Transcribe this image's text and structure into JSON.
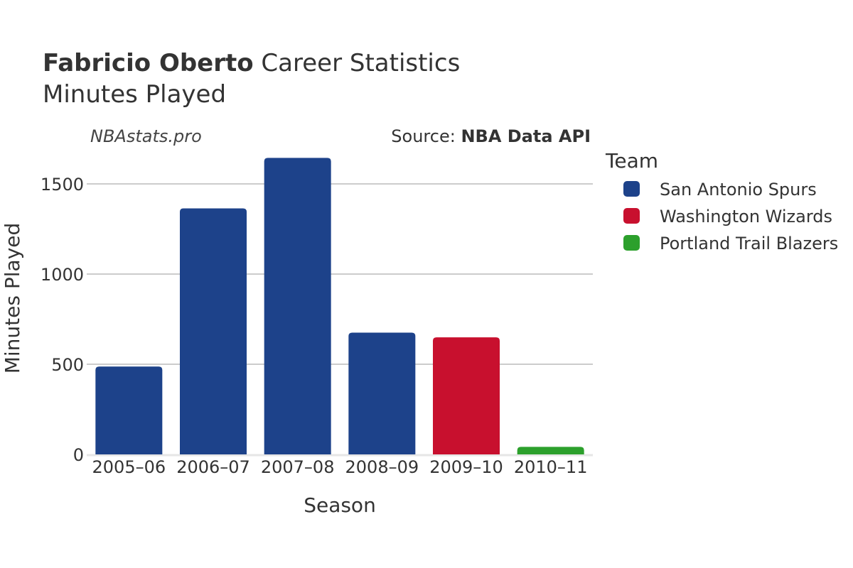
{
  "header": {
    "player_name": "Fabricio Oberto",
    "title_rest": " Career Statistics",
    "subtitle": "Minutes Played"
  },
  "watermark": "NBAstats.pro",
  "source": {
    "prefix": "Source: ",
    "name": "NBA Data API"
  },
  "legend": {
    "title": "Team",
    "items": [
      {
        "label": "San Antonio Spurs",
        "color": "#1D428A"
      },
      {
        "label": "Washington Wizards",
        "color": "#C8102E"
      },
      {
        "label": "Portland Trail Blazers",
        "color": "#2CA02C"
      }
    ]
  },
  "chart_data": {
    "type": "bar",
    "categories": [
      "2005–06",
      "2006–07",
      "2007–08",
      "2008–09",
      "2009–10",
      "2010–11"
    ],
    "values": [
      487,
      1364,
      1644,
      675,
      649,
      42
    ],
    "teams": [
      "San Antonio Spurs",
      "San Antonio Spurs",
      "San Antonio Spurs",
      "San Antonio Spurs",
      "Washington Wizards",
      "Portland Trail Blazers"
    ],
    "xlabel": "Season",
    "ylabel": "Minutes Played",
    "ylim": [
      0,
      1700
    ],
    "yticks": [
      0,
      500,
      1000,
      1500
    ],
    "grid": true,
    "legend_position": "right"
  }
}
